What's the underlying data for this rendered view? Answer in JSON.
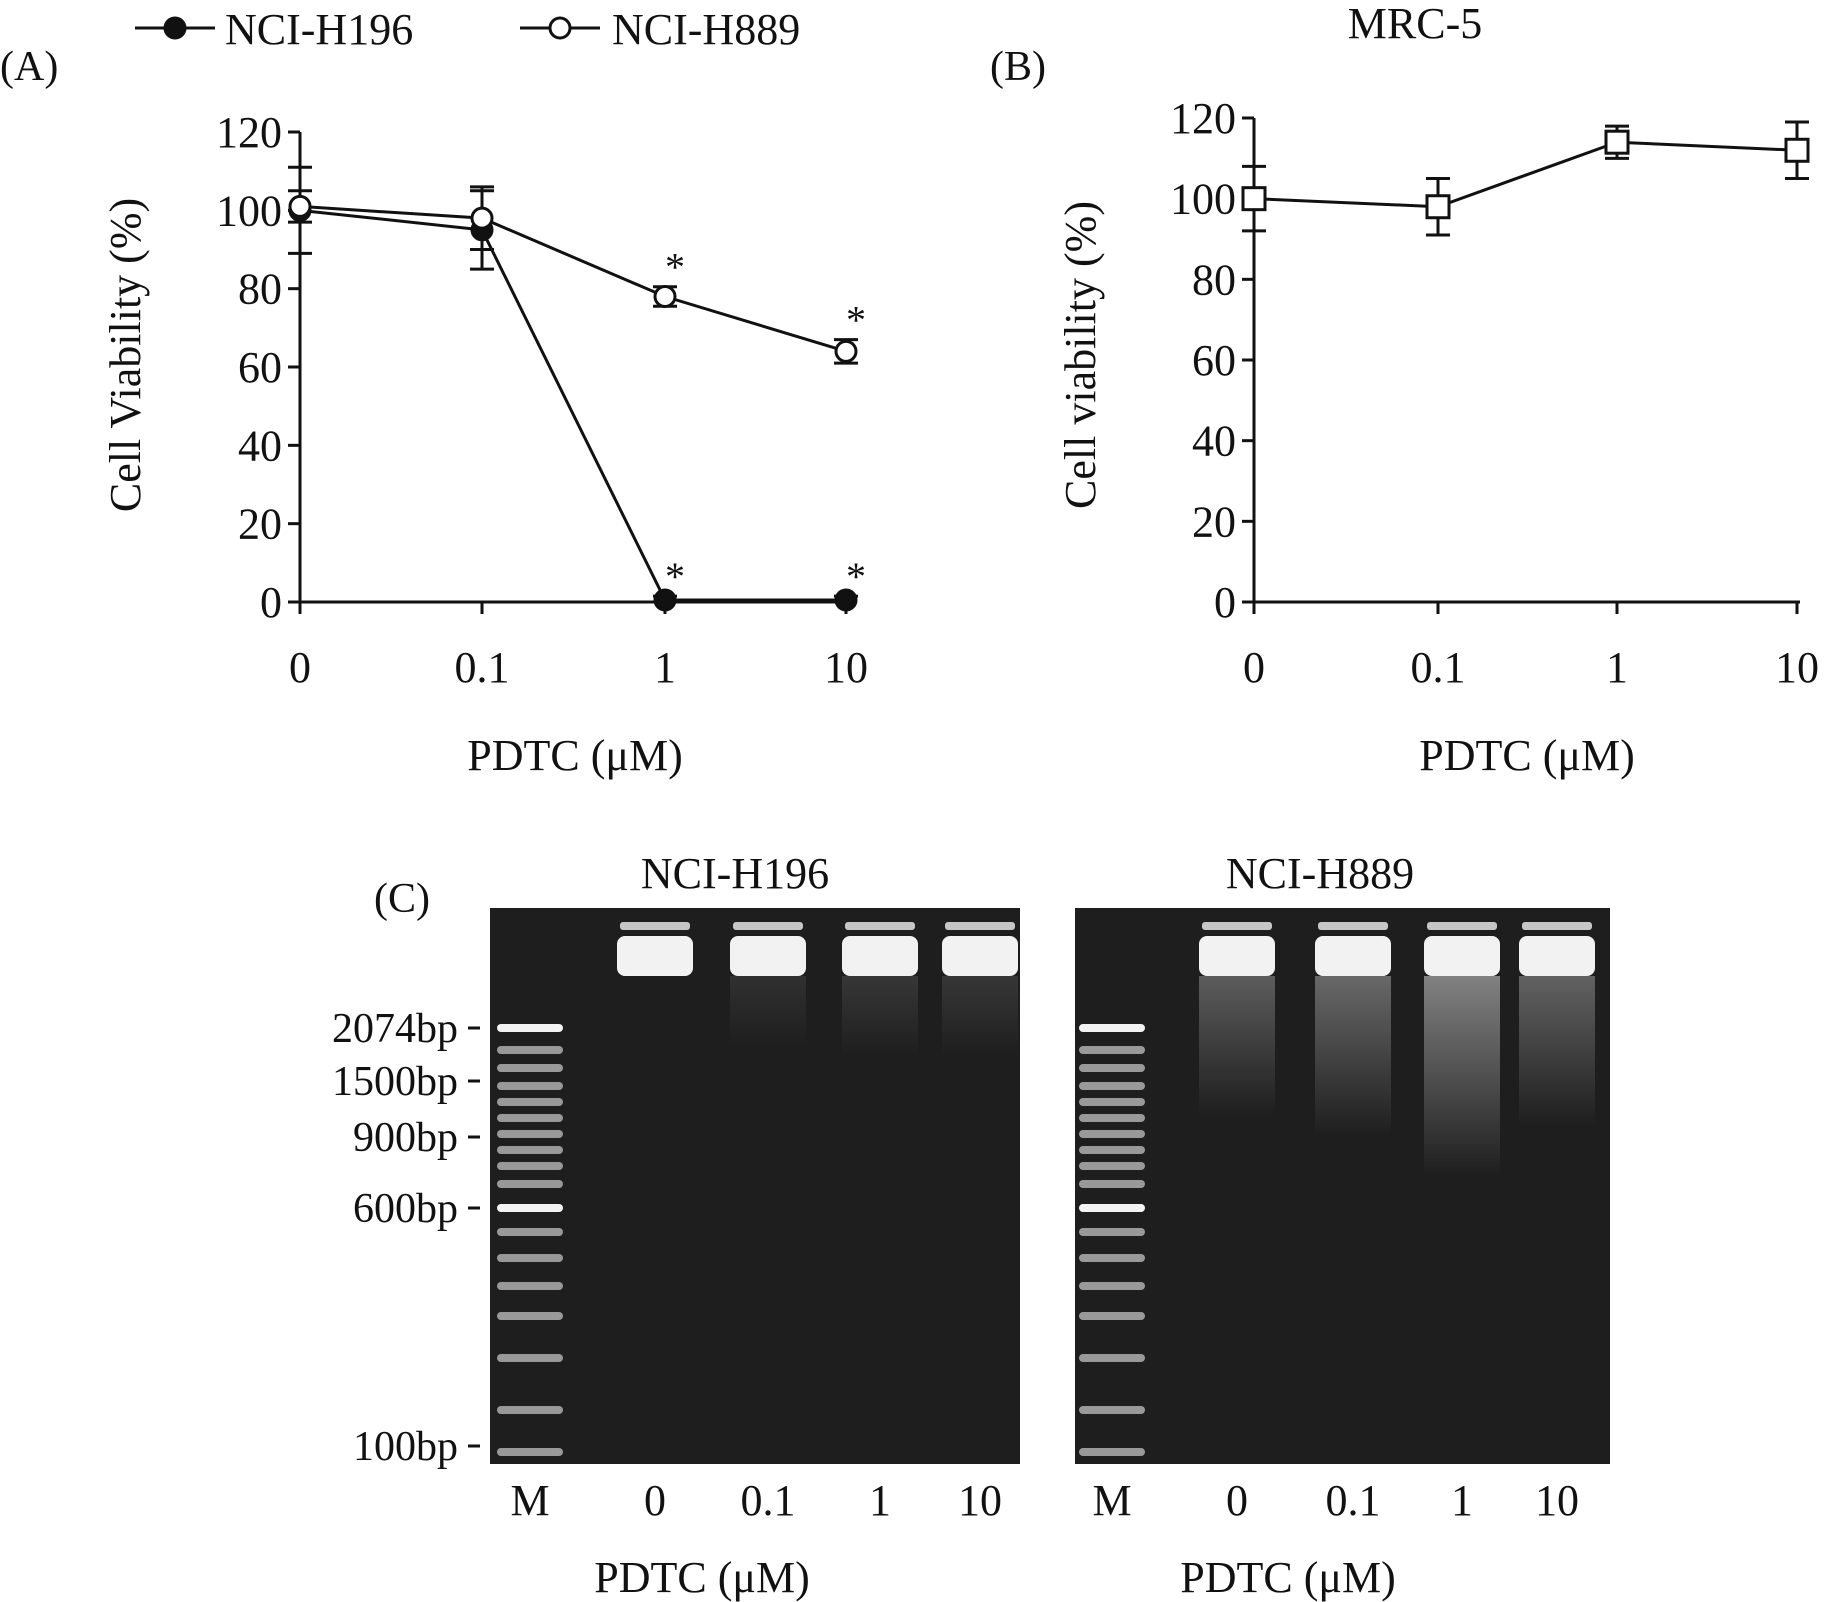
{
  "legend": {
    "items": [
      {
        "label": "NCI-H196",
        "marker": "filled-circle"
      },
      {
        "label": "NCI-H889",
        "marker": "open-circle"
      }
    ]
  },
  "panel_a": {
    "label": "(A)",
    "ylabel": "Cell Viability (%)",
    "xlabel": "PDTC (μM)",
    "yticks": [
      "0",
      "20",
      "40",
      "60",
      "80",
      "100",
      "120"
    ],
    "xticks": [
      "0",
      "0.1",
      "1",
      "10"
    ]
  },
  "panel_b": {
    "label": "(B)",
    "title": "MRC-5",
    "ylabel": "Cell viability (%)",
    "xlabel": "PDTC (μM)",
    "yticks": [
      "0",
      "20",
      "40",
      "60",
      "80",
      "100",
      "120"
    ],
    "xticks": [
      "0",
      "0.1",
      "1",
      "10"
    ]
  },
  "panel_c": {
    "label": "(C)",
    "markers": [
      "2074bp",
      "1500bp",
      "900bp",
      "600bp",
      "100bp"
    ],
    "gels": [
      {
        "title": "NCI-H196",
        "lanes": [
          "M",
          "0",
          "0.1",
          "1",
          "10"
        ],
        "xlabel": "PDTC (μM)"
      },
      {
        "title": "NCI-H889",
        "lanes": [
          "M",
          "0",
          "0.1",
          "1",
          "10"
        ],
        "xlabel": "PDTC (μM)"
      }
    ]
  },
  "chart_data": [
    {
      "type": "line",
      "panel": "A",
      "categories": [
        "0",
        "0.1",
        "1",
        "10"
      ],
      "xlabel": "PDTC (μM)",
      "ylabel": "Cell Viability (%)",
      "ylim": [
        0,
        120
      ],
      "legend_position": "top",
      "series": [
        {
          "name": "NCI-H196",
          "marker": "filled-circle",
          "values": [
            100,
            95,
            0.5,
            0.5
          ],
          "errors": [
            11,
            10,
            1,
            1
          ],
          "significant": [
            false,
            false,
            true,
            true
          ]
        },
        {
          "name": "NCI-H889",
          "marker": "open-circle",
          "values": [
            101,
            98,
            78,
            64
          ],
          "errors": [
            4,
            8,
            2.5,
            3
          ],
          "significant": [
            false,
            false,
            true,
            true
          ]
        }
      ]
    },
    {
      "type": "line",
      "panel": "B",
      "title": "MRC-5",
      "categories": [
        "0",
        "0.1",
        "1",
        "10"
      ],
      "xlabel": "PDTC (μM)",
      "ylabel": "Cell viability (%)",
      "ylim": [
        0,
        120
      ],
      "series": [
        {
          "marker": "open-square",
          "values": [
            100,
            98,
            114,
            112
          ],
          "errors": [
            8,
            7,
            4,
            7
          ]
        }
      ]
    }
  ],
  "colors": {
    "line": "#111111",
    "gel_background": "#1e1e1e",
    "band": "#f2f2f2"
  }
}
